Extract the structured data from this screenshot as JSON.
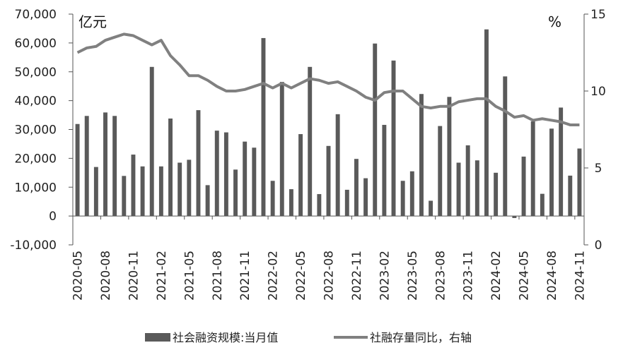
{
  "chart_data": {
    "type": "bar+line",
    "left_unit": "亿元",
    "right_unit": "%",
    "x": [
      "2020-05",
      "2020-06",
      "2020-07",
      "2020-08",
      "2020-09",
      "2020-10",
      "2020-11",
      "2020-12",
      "2021-01",
      "2021-02",
      "2021-03",
      "2021-04",
      "2021-05",
      "2021-06",
      "2021-07",
      "2021-08",
      "2021-09",
      "2021-10",
      "2021-11",
      "2021-12",
      "2022-01",
      "2022-02",
      "2022-03",
      "2022-04",
      "2022-05",
      "2022-06",
      "2022-07",
      "2022-08",
      "2022-09",
      "2022-10",
      "2022-11",
      "2022-12",
      "2023-01",
      "2023-02",
      "2023-03",
      "2023-04",
      "2023-05",
      "2023-06",
      "2023-07",
      "2023-08",
      "2023-09",
      "2023-10",
      "2023-11",
      "2023-12",
      "2024-01",
      "2024-02",
      "2024-03",
      "2024-04",
      "2024-05",
      "2024-06",
      "2024-07",
      "2024-08",
      "2024-09",
      "2024-10",
      "2024-11"
    ],
    "x_tick_labels": [
      "2020-05",
      "2020-08",
      "2020-11",
      "2021-02",
      "2021-05",
      "2021-08",
      "2021-11",
      "2022-02",
      "2022-05",
      "2022-08",
      "2022-11",
      "2023-02",
      "2023-05",
      "2023-08",
      "2023-11",
      "2024-02",
      "2024-05",
      "2024-08",
      "2024-11"
    ],
    "y_left": {
      "min": -10000,
      "max": 70000,
      "ticks": [
        "-10,000",
        "0",
        "10,000",
        "20,000",
        "30,000",
        "40,000",
        "50,000",
        "60,000",
        "70,000"
      ]
    },
    "y_right": {
      "min": 0,
      "max": 15,
      "ticks": [
        "0",
        "5",
        "10",
        "15"
      ]
    },
    "series": [
      {
        "name": "社会融资规模:当月值",
        "type": "bar",
        "axis": "left",
        "color": "#5a5a5a",
        "values": [
          31900,
          34700,
          17000,
          35900,
          34700,
          13900,
          21300,
          17200,
          51700,
          17200,
          33800,
          18500,
          19500,
          36700,
          10700,
          29600,
          29000,
          16100,
          25800,
          23700,
          61700,
          12200,
          46500,
          9300,
          28400,
          51700,
          7600,
          24300,
          35300,
          9100,
          19800,
          13100,
          59800,
          31600,
          53900,
          12200,
          15500,
          42300,
          5300,
          31200,
          41300,
          18500,
          24500,
          19300,
          64700,
          15000,
          48400,
          -700,
          20600,
          32800,
          7700,
          30300,
          37600,
          14000,
          23400
        ]
      },
      {
        "name": "社融存量同比，右轴",
        "type": "line",
        "axis": "right",
        "color": "#808080",
        "values": [
          12.5,
          12.8,
          12.9,
          13.3,
          13.5,
          13.7,
          13.6,
          13.3,
          13.0,
          13.3,
          12.3,
          11.7,
          11.0,
          11.0,
          10.7,
          10.3,
          10.0,
          10.0,
          10.1,
          10.3,
          10.5,
          10.2,
          10.5,
          10.2,
          10.5,
          10.8,
          10.7,
          10.5,
          10.6,
          10.3,
          10.0,
          9.6,
          9.4,
          9.9,
          10.0,
          10.0,
          9.5,
          9.0,
          8.9,
          9.0,
          9.0,
          9.3,
          9.4,
          9.5,
          9.5,
          9.0,
          8.7,
          8.3,
          8.4,
          8.1,
          8.2,
          8.1,
          8.0,
          7.8,
          7.8
        ]
      }
    ]
  }
}
